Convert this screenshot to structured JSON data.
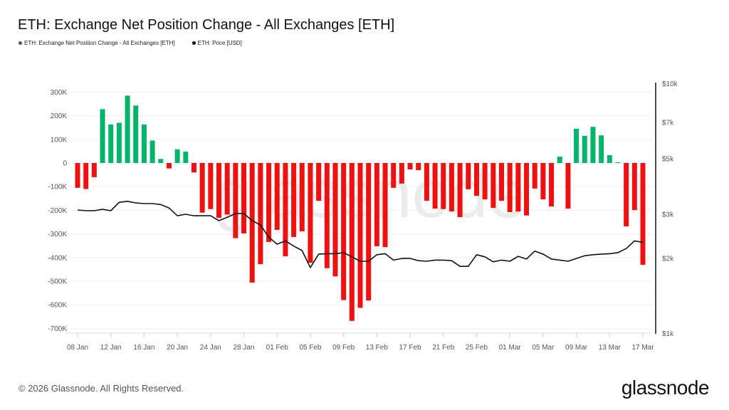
{
  "header": {
    "title": "ETH: Exchange Net Position Change - All Exchanges [ETH]"
  },
  "footer": {
    "copyright": "© 2026 Glassnode. All Rights Reserved.",
    "brand": "glassnode"
  },
  "chart_data": {
    "type": "bar",
    "title": "ETH: Exchange Net Position Change - All Exchanges [ETH]",
    "legend_placement": "top-left",
    "grid": true,
    "watermark": "glassnode",
    "colors": {
      "positive": "#00b469",
      "negative": "#ef1010",
      "price": "#111111"
    },
    "x_ticks": [
      "08 Jan",
      "12 Jan",
      "16 Jan",
      "20 Jan",
      "24 Jan",
      "28 Jan",
      "01 Feb",
      "05 Feb",
      "09 Feb",
      "13 Feb",
      "17 Feb",
      "21 Feb",
      "25 Feb",
      "01 Mar",
      "05 Mar",
      "09 Mar",
      "13 Mar",
      "17 Mar"
    ],
    "y_left": {
      "ticks": [
        "300K",
        "200K",
        "100K",
        "0",
        "-100K",
        "-200K",
        "-300K",
        "-400K",
        "-500K",
        "-600K",
        "-700K"
      ],
      "values": [
        300,
        200,
        100,
        0,
        -100,
        -200,
        -300,
        -400,
        -500,
        -600,
        -700
      ],
      "unit": "K ETH",
      "ylim": [
        -720,
        320
      ]
    },
    "y_right": {
      "scale": "log",
      "ticks": [
        "$10k",
        "$7k",
        "$5k",
        "$3k",
        "$2k",
        "$1k"
      ],
      "values": [
        10000,
        7000,
        5000,
        3000,
        2000,
        1000
      ],
      "ylim": [
        1000,
        10000
      ]
    },
    "x": [
      "2026-01-08",
      "2026-01-09",
      "2026-01-10",
      "2026-01-11",
      "2026-01-12",
      "2026-01-13",
      "2026-01-14",
      "2026-01-15",
      "2026-01-16",
      "2026-01-17",
      "2026-01-18",
      "2026-01-19",
      "2026-01-20",
      "2026-01-21",
      "2026-01-22",
      "2026-01-23",
      "2026-01-24",
      "2026-01-25",
      "2026-01-26",
      "2026-01-27",
      "2026-01-28",
      "2026-01-29",
      "2026-01-30",
      "2026-01-31",
      "2026-02-01",
      "2026-02-02",
      "2026-02-03",
      "2026-02-04",
      "2026-02-05",
      "2026-02-06",
      "2026-02-07",
      "2026-02-08",
      "2026-02-09",
      "2026-02-10",
      "2026-02-11",
      "2026-02-12",
      "2026-02-13",
      "2026-02-14",
      "2026-02-15",
      "2026-02-16",
      "2026-02-17",
      "2026-02-18",
      "2026-02-19",
      "2026-02-20",
      "2026-02-21",
      "2026-02-22",
      "2026-02-23",
      "2026-02-24",
      "2026-02-25",
      "2026-02-26",
      "2026-02-27",
      "2026-02-28",
      "2026-03-01",
      "2026-03-02",
      "2026-03-03",
      "2026-03-04",
      "2026-03-05",
      "2026-03-06",
      "2026-03-07",
      "2026-03-08",
      "2026-03-09",
      "2026-03-10",
      "2026-03-11",
      "2026-03-12",
      "2026-03-13",
      "2026-03-14",
      "2026-03-15",
      "2026-03-16",
      "2026-03-17"
    ],
    "series": [
      {
        "name": "ETH: Exchange Net Position Change - All Exchanges [ETH]",
        "axis": "left",
        "type": "bar",
        "values": [
          -105,
          -110,
          -60,
          228,
          163,
          170,
          285,
          243,
          163,
          95,
          17,
          -23,
          58,
          48,
          -40,
          -210,
          -195,
          -232,
          -218,
          -318,
          -298,
          -506,
          -428,
          -334,
          -283,
          -395,
          -313,
          -289,
          -422,
          -160,
          -445,
          -480,
          -580,
          -668,
          -613,
          -582,
          -352,
          -356,
          -105,
          -87,
          -27,
          -30,
          -160,
          -193,
          -195,
          -205,
          -229,
          -111,
          -139,
          -154,
          -190,
          -160,
          -208,
          -205,
          -222,
          -108,
          -154,
          -184,
          27,
          -193,
          145,
          115,
          153,
          117,
          33,
          3,
          -268,
          -199,
          -431
        ]
      },
      {
        "name": "ETH: Price [USD]",
        "axis": "right",
        "type": "line",
        "values": [
          3110,
          3090,
          3090,
          3130,
          3090,
          3340,
          3370,
          3320,
          3300,
          3300,
          3270,
          3170,
          2950,
          2990,
          2950,
          2950,
          2950,
          2820,
          2910,
          3010,
          3010,
          2820,
          2710,
          2420,
          2270,
          2340,
          2230,
          2140,
          1830,
          2070,
          2080,
          2080,
          2100,
          2020,
          1940,
          1940,
          2060,
          2080,
          1960,
          1990,
          1990,
          1950,
          1940,
          1960,
          1960,
          1950,
          1850,
          1850,
          2060,
          2020,
          1930,
          1960,
          1940,
          2030,
          1980,
          2130,
          2070,
          1980,
          1960,
          1940,
          1990,
          2040,
          2060,
          2070,
          2080,
          2100,
          2180,
          2340,
          2310
        ]
      }
    ]
  }
}
